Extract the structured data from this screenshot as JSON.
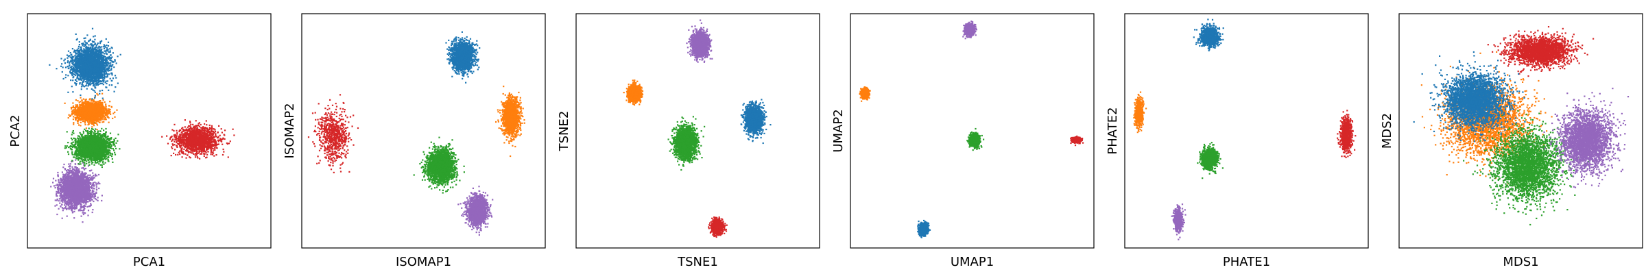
{
  "figure": {
    "background": "#ffffff",
    "cluster_colors": {
      "blue": "#1f77b4",
      "orange": "#ff7f0e",
      "green": "#2ca02c",
      "red": "#d62728",
      "purple": "#9467bd"
    }
  },
  "chart_data": [
    {
      "type": "scatter",
      "title": "",
      "xlabel": "PCA1",
      "ylabel": "PCA2",
      "xlim": [
        0,
        100
      ],
      "ylim": [
        0,
        100
      ],
      "ticks": "none",
      "grid": false,
      "clusters": [
        {
          "color": "#9467bd",
          "center": [
            20,
            25
          ],
          "spread": [
            6.5,
            7.5
          ],
          "count": 2600
        },
        {
          "color": "#2ca02c",
          "center": [
            27,
            43
          ],
          "spread": [
            7,
            5.5
          ],
          "count": 2600
        },
        {
          "color": "#ff7f0e",
          "center": [
            26,
            58
          ],
          "spread": [
            6,
            4
          ],
          "count": 2000
        },
        {
          "color": "#1f77b4",
          "center": [
            26,
            78
          ],
          "spread": [
            7.5,
            8
          ],
          "count": 2600
        },
        {
          "color": "#d62728",
          "center": [
            70,
            46
          ],
          "spread": [
            9,
            5.5
          ],
          "count": 1500
        }
      ]
    },
    {
      "type": "scatter",
      "title": "",
      "xlabel": "ISOMAP1",
      "ylabel": "ISOMAP2",
      "xlim": [
        0,
        100
      ],
      "ylim": [
        0,
        100
      ],
      "ticks": "none",
      "grid": false,
      "clusters": [
        {
          "color": "#d62728",
          "center": [
            13,
            48
          ],
          "spread": [
            6,
            11
          ],
          "count": 700
        },
        {
          "color": "#1f77b4",
          "center": [
            66,
            82
          ],
          "spread": [
            4.5,
            6
          ],
          "count": 1800
        },
        {
          "color": "#ff7f0e",
          "center": [
            86,
            56
          ],
          "spread": [
            3.5,
            8
          ],
          "count": 1400
        },
        {
          "color": "#2ca02c",
          "center": [
            57,
            35
          ],
          "spread": [
            5.5,
            7
          ],
          "count": 2200
        },
        {
          "color": "#9467bd",
          "center": [
            72,
            16
          ],
          "spread": [
            4,
            6
          ],
          "count": 1600
        }
      ]
    },
    {
      "type": "scatter",
      "title": "",
      "xlabel": "TSNE1",
      "ylabel": "TSNE2",
      "xlim": [
        0,
        100
      ],
      "ylim": [
        0,
        100
      ],
      "ticks": "none",
      "grid": false,
      "clusters": [
        {
          "color": "#9467bd",
          "center": [
            51,
            87
          ],
          "spread": [
            3.2,
            5
          ],
          "count": 1800
        },
        {
          "color": "#ff7f0e",
          "center": [
            24,
            66
          ],
          "spread": [
            2.4,
            3.2
          ],
          "count": 1400
        },
        {
          "color": "#1f77b4",
          "center": [
            73,
            55
          ],
          "spread": [
            3.5,
            5.5
          ],
          "count": 1800
        },
        {
          "color": "#2ca02c",
          "center": [
            45,
            45
          ],
          "spread": [
            4.2,
            6.5
          ],
          "count": 2200
        },
        {
          "color": "#d62728",
          "center": [
            58,
            9
          ],
          "spread": [
            2.2,
            2.8
          ],
          "count": 1000
        }
      ]
    },
    {
      "type": "scatter",
      "title": "",
      "xlabel": "UMAP1",
      "ylabel": "UMAP2",
      "xlim": [
        0,
        100
      ],
      "ylim": [
        0,
        100
      ],
      "ticks": "none",
      "grid": false,
      "clusters": [
        {
          "color": "#9467bd",
          "center": [
            49,
            93
          ],
          "spread": [
            1.9,
            2.3
          ],
          "count": 900
        },
        {
          "color": "#ff7f0e",
          "center": [
            6,
            66
          ],
          "spread": [
            1.5,
            2
          ],
          "count": 700
        },
        {
          "color": "#2ca02c",
          "center": [
            51,
            46
          ],
          "spread": [
            2,
            2.6
          ],
          "count": 1100
        },
        {
          "color": "#d62728",
          "center": [
            93,
            46
          ],
          "spread": [
            1.6,
            1
          ],
          "count": 600
        },
        {
          "color": "#1f77b4",
          "center": [
            30,
            8
          ],
          "spread": [
            1.8,
            2.3
          ],
          "count": 900
        }
      ]
    },
    {
      "type": "scatter",
      "title": "",
      "xlabel": "PHATE1",
      "ylabel": "PHATE2",
      "xlim": [
        0,
        100
      ],
      "ylim": [
        0,
        100
      ],
      "ticks": "none",
      "grid": false,
      "clusters": [
        {
          "color": "#1f77b4",
          "center": [
            35,
            90
          ],
          "spread": [
            3.5,
            4
          ],
          "count": 1000
        },
        {
          "color": "#ff7f0e",
          "center": [
            6,
            58
          ],
          "spread": [
            1.5,
            5.5
          ],
          "count": 700
        },
        {
          "color": "#2ca02c",
          "center": [
            35,
            38
          ],
          "spread": [
            3,
            4
          ],
          "count": 1100
        },
        {
          "color": "#d62728",
          "center": [
            91,
            48
          ],
          "spread": [
            2,
            7
          ],
          "count": 900
        },
        {
          "color": "#9467bd",
          "center": [
            22,
            12
          ],
          "spread": [
            1.6,
            4.5
          ],
          "count": 700
        }
      ]
    },
    {
      "type": "scatter",
      "title": "",
      "xlabel": "MDS1",
      "ylabel": "MDS2",
      "xlim": [
        0,
        100
      ],
      "ylim": [
        0,
        100
      ],
      "ticks": "none",
      "grid": false,
      "clusters": [
        {
          "color": "#ff7f0e",
          "center": [
            36,
            54
          ],
          "spread": [
            16,
            15
          ],
          "count": 2600
        },
        {
          "color": "#2ca02c",
          "center": [
            53,
            35
          ],
          "spread": [
            13,
            14
          ],
          "count": 3000
        },
        {
          "color": "#d62728",
          "center": [
            58,
            84
          ],
          "spread": [
            12,
            6
          ],
          "count": 2200
        },
        {
          "color": "#1f77b4",
          "center": [
            31,
            63
          ],
          "spread": [
            12,
            11
          ],
          "count": 3000
        },
        {
          "color": "#9467bd",
          "center": [
            77,
            46
          ],
          "spread": [
            10,
            12
          ],
          "count": 2800
        }
      ]
    }
  ]
}
